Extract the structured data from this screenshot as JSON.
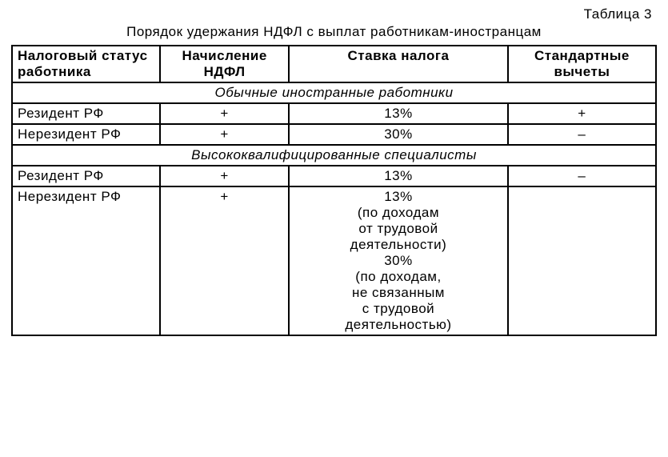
{
  "table_number": "Таблица 3",
  "title": "Порядок удержания НДФЛ с выплат работникам-иностранцам",
  "columns": {
    "status": "Налоговый статус работника",
    "accrual": "Начисление НДФЛ",
    "rate": "Ставка налога",
    "deductions": "Стандартные вычеты"
  },
  "sections": [
    {
      "heading": "Обычные иностранные работники",
      "rows": [
        {
          "status": "Резидент РФ",
          "accrual": "+",
          "rate": "13%",
          "deductions": "+"
        },
        {
          "status": "Нерезидент РФ",
          "accrual": "+",
          "rate": "30%",
          "deductions": "–"
        }
      ]
    },
    {
      "heading": "Высококвалифицированные специалисты",
      "rows": [
        {
          "status": "Резидент РФ",
          "accrual": "+",
          "rate": "13%",
          "deductions": "–"
        },
        {
          "status": "Нерезидент РФ",
          "accrual": "+",
          "rate_lines": [
            "13%",
            "(по доходам",
            "от трудовой",
            "деятельности)",
            "30%",
            "(по доходам,",
            "не связанным",
            "с трудовой",
            "деятельностью)"
          ],
          "deductions": ""
        }
      ]
    }
  ]
}
